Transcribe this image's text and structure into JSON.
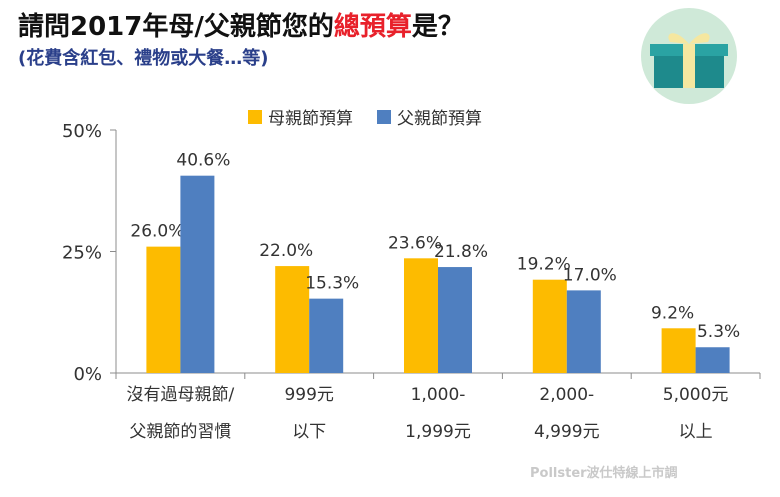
{
  "title": {
    "before": "請問2017年母/父親節您的",
    "highlight": "總預算",
    "after": "是？"
  },
  "subtitle": "(花費含紅包、禮物或大餐…等)",
  "credit": "Pollster波仕特線上市調",
  "colors": {
    "mother": "#fdbb00",
    "father": "#4f7fc0",
    "title_highlight": "#e8212b",
    "subtitle": "#2a3f8a"
  },
  "chart_data": {
    "type": "bar",
    "categories": [
      [
        "沒有過母親節/",
        "父親節的習慣"
      ],
      [
        "999元",
        "以下"
      ],
      [
        "1,000-",
        "1,999元"
      ],
      [
        "2,000-",
        "4,999元"
      ],
      [
        "5,000元",
        "以上"
      ]
    ],
    "series": [
      {
        "name": "母親節預算",
        "values": [
          26.0,
          22.0,
          23.6,
          19.2,
          9.2
        ],
        "labels": [
          "26.0%",
          "22.0%",
          "23.6%",
          "19.2%",
          "9.2%"
        ]
      },
      {
        "name": "父親節預算",
        "values": [
          40.6,
          15.3,
          21.8,
          17.0,
          5.3
        ],
        "labels": [
          "40.6%",
          "15.3%",
          "21.8%",
          "17.0%",
          "5.3%"
        ]
      }
    ],
    "ylim": [
      0,
      50
    ],
    "yticks": [
      0,
      25,
      50
    ],
    "ytick_labels": [
      "0%",
      "25%",
      "50%"
    ],
    "grid": false,
    "legend_position": "top"
  }
}
